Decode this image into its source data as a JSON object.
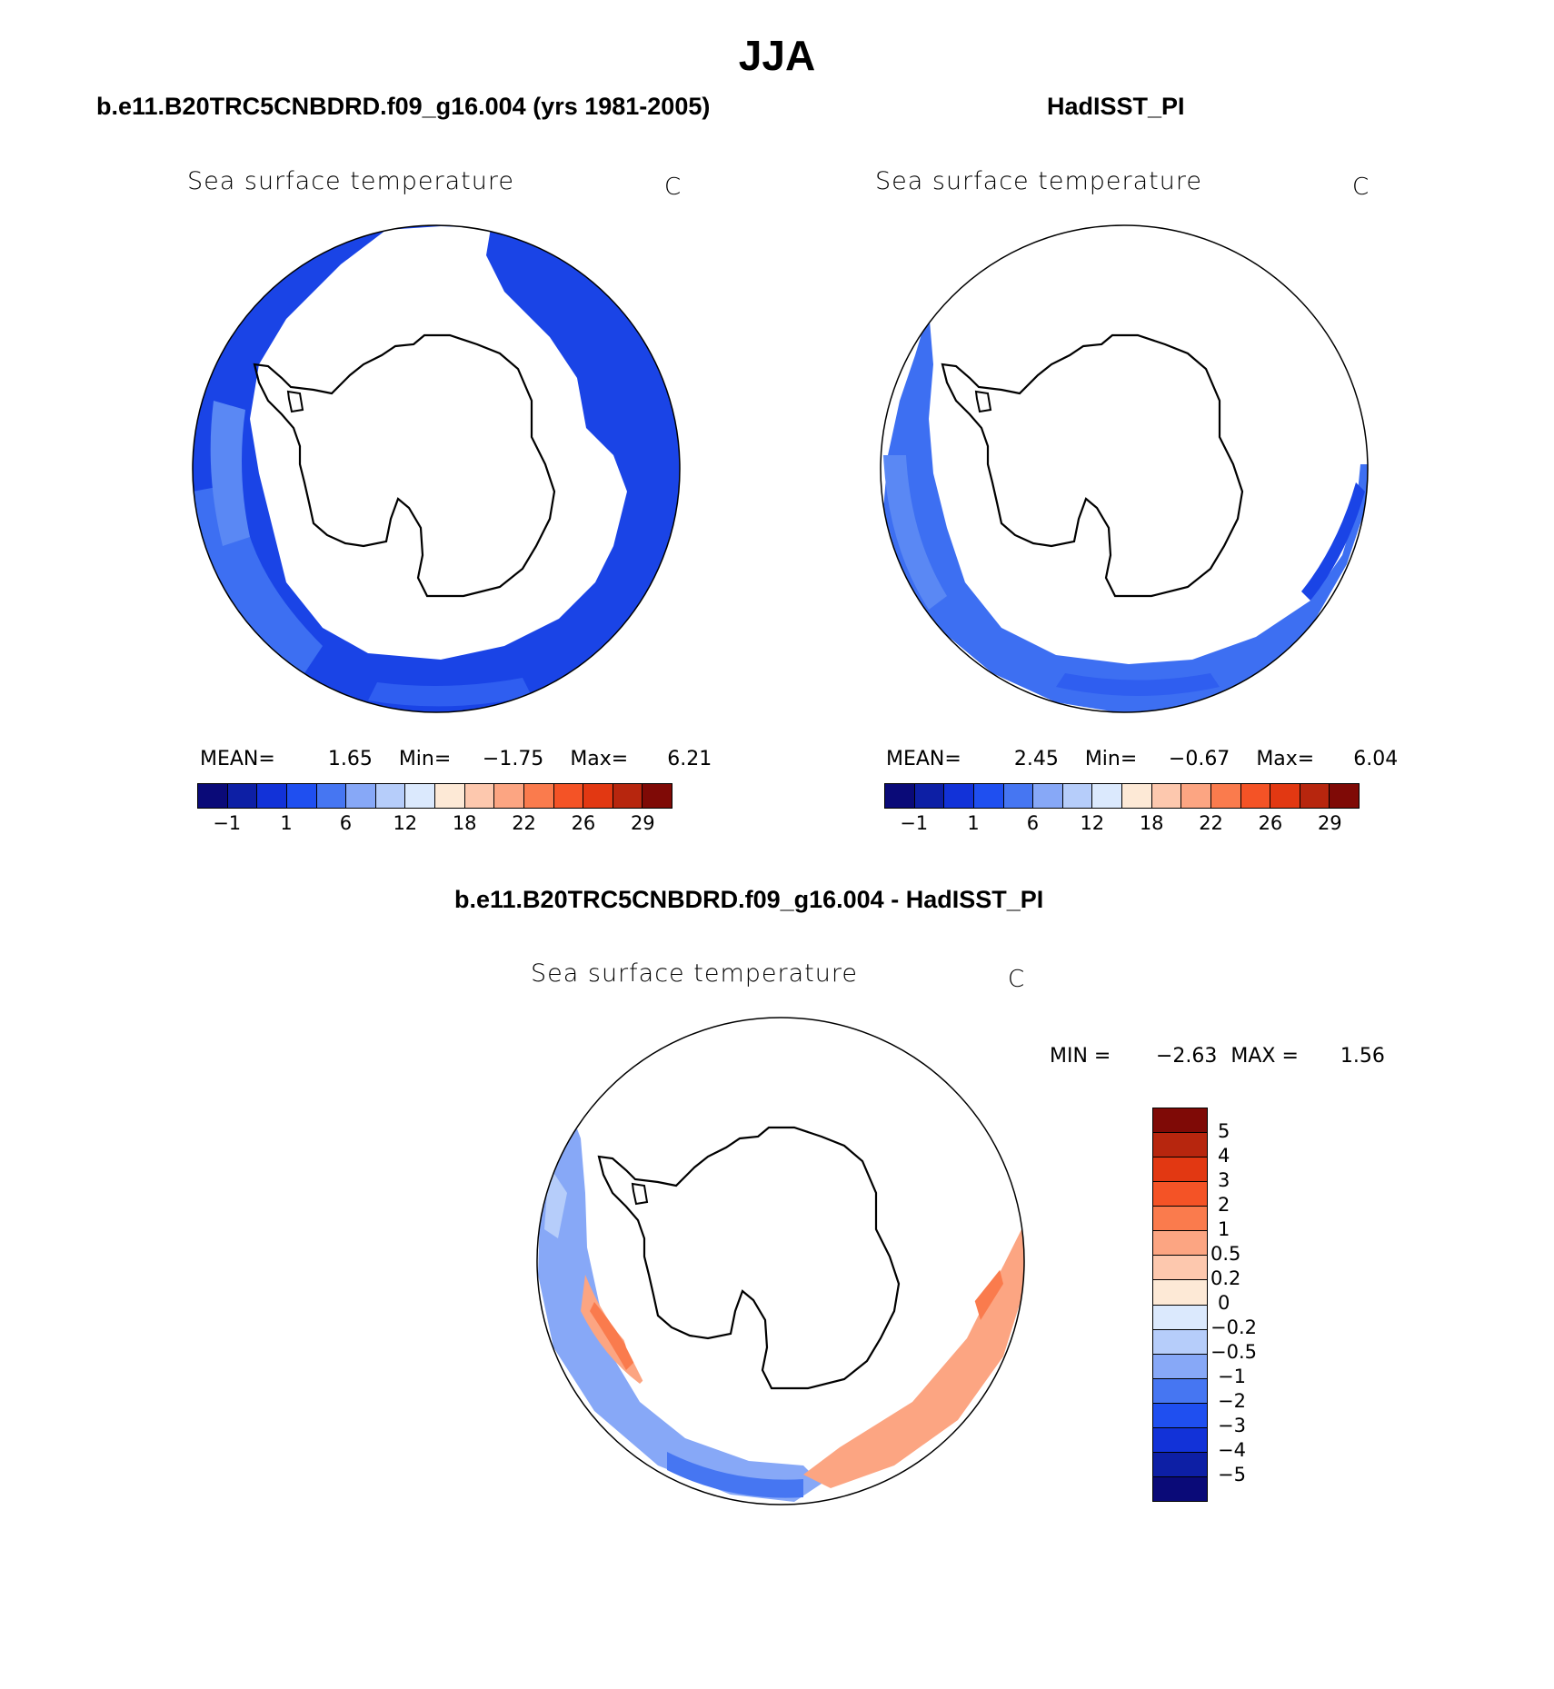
{
  "figure": {
    "season": "JJA"
  },
  "panels": {
    "model": {
      "title": "b.e11.B20TRC5CNBDRD.f09_g16.004 (yrs 1981-2005)",
      "field": "Sea surface temperature",
      "unit": "C",
      "mean_label": "MEAN=",
      "mean": "1.65",
      "min_label": "Min=",
      "min": "−1.75",
      "max_label": "Max=",
      "max": "6.21"
    },
    "obs": {
      "title": "HadISST_PI",
      "field": "Sea surface temperature",
      "unit": "C",
      "mean_label": "MEAN=",
      "mean": "2.45",
      "min_label": "Min=",
      "min": "−0.67",
      "max_label": "Max=",
      "max": "6.04"
    },
    "diff": {
      "title": "b.e11.B20TRC5CNBDRD.f09_g16.004 - HadISST_PI",
      "field": "Sea surface temperature",
      "unit": "C",
      "min_label": "MIN =",
      "min": "−2.63",
      "max_label": "MAX =",
      "max": "1.56"
    }
  },
  "colorbars": {
    "absolute": {
      "colors": [
        "#0a0a78",
        "#0d1fa5",
        "#1232d8",
        "#1f4ff0",
        "#4676f2",
        "#87a8f7",
        "#b6cdfa",
        "#dbe9fd",
        "#fde9d6",
        "#fdc8ae",
        "#fca582",
        "#fa7b4d",
        "#f45326",
        "#e23812",
        "#b7260e",
        "#7f0a06"
      ],
      "tick_labels": [
        "−1",
        "1",
        "6",
        "12",
        "18",
        "22",
        "26",
        "29"
      ]
    },
    "difference": {
      "colors": [
        "#7f0a06",
        "#b7260e",
        "#e23812",
        "#f45326",
        "#fa7b4d",
        "#fca582",
        "#fdc8ae",
        "#fde9d6",
        "#dbe9fd",
        "#b6cdfa",
        "#87a8f7",
        "#4676f2",
        "#1f4ff0",
        "#1232d8",
        "#0d1fa5",
        "#0a0a78"
      ],
      "tick_labels": [
        "5",
        "4",
        "3",
        "2",
        "1",
        "0.5",
        "0.2",
        "0",
        "−0.2",
        "−0.5",
        "−1",
        "−2",
        "−3",
        "−4",
        "−5"
      ]
    }
  },
  "colors": {
    "ocean_dark": "#1a44e6",
    "ocean_mid": "#2f5ef0",
    "ocean_light": "#4b7ef2",
    "ice": "#ffffff",
    "diff_neg": "#87a8f7",
    "diff_pos": "#fca582",
    "coast": "#000000"
  }
}
